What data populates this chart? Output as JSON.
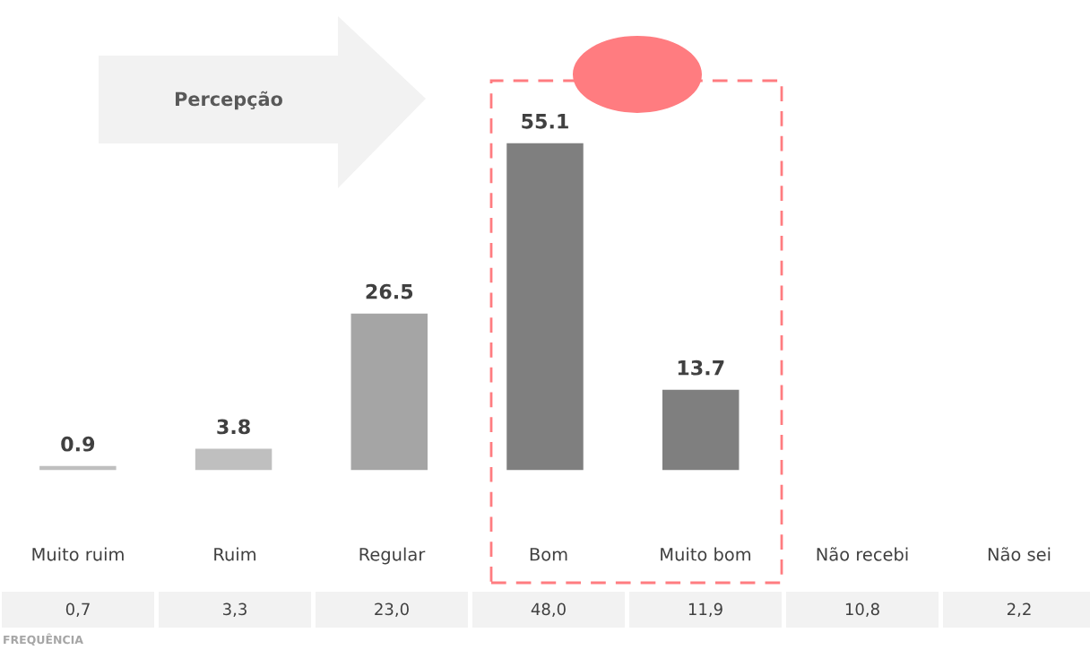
{
  "chart_data": {
    "type": "bar",
    "categories": [
      "Muito ruim",
      "Ruim",
      "Regular",
      "Bom",
      "Muito bom",
      "Não recebi",
      "Não sei"
    ],
    "values": [
      0.9,
      3.8,
      26.5,
      55.1,
      13.7,
      null,
      null
    ],
    "colors": [
      "#bfbfbf",
      "#bfbfbf",
      "#a5a5a5",
      "#7f7f7f",
      "#7f7f7f",
      "#7f7f7f",
      "#7f7f7f"
    ],
    "data_labels": true,
    "annotations": [
      "Percepção",
      "0,7",
      "3,3",
      "23,0",
      "48,0",
      "11,9",
      "10,8",
      "2,2",
      "FREQUÊNCIA"
    ]
  }
}
